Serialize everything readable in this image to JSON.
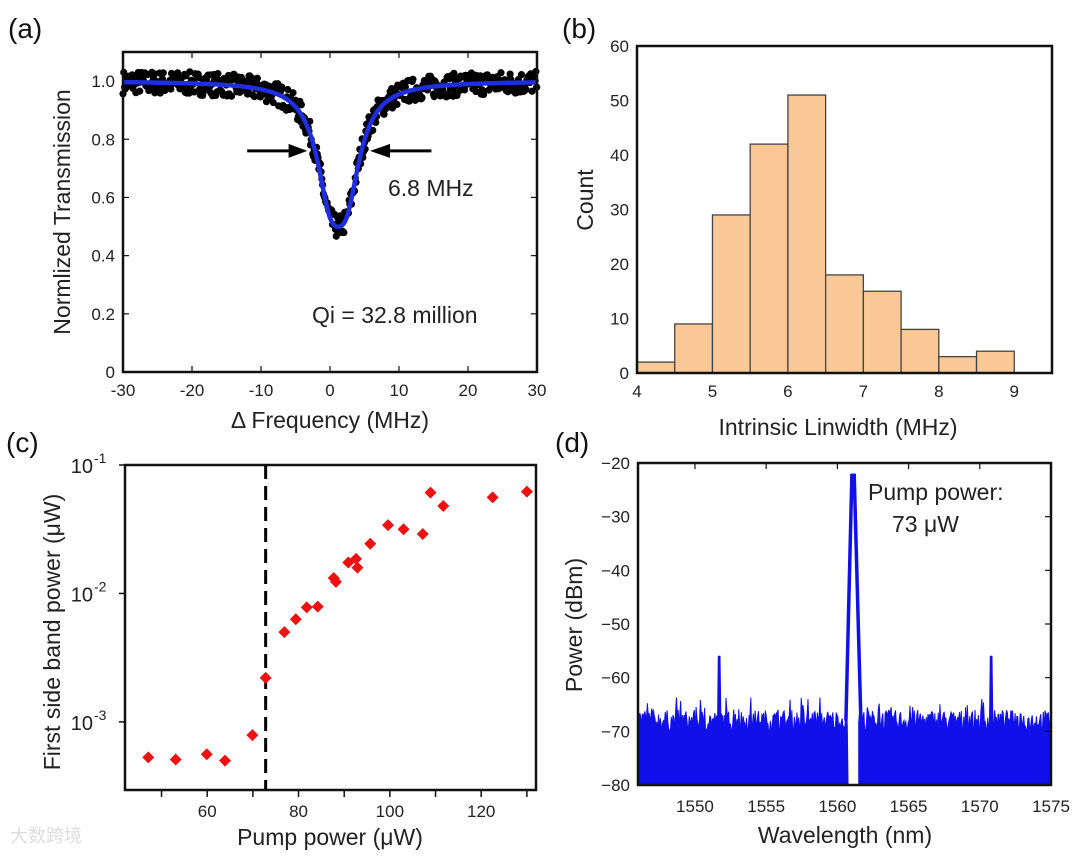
{
  "chart_data": [
    {
      "panel": "(a)",
      "type": "scatter",
      "xlabel": "Δ Frequency (MHz)",
      "ylabel": "Normlized Transmission",
      "xlim": [
        -30,
        30
      ],
      "ylim": [
        0,
        1.1
      ],
      "xticks": [
        "-30",
        "-20",
        "-10",
        "0",
        "10",
        "20",
        "30"
      ],
      "yticks": [
        "0",
        "0.2",
        "0.4",
        "0.6",
        "0.8",
        "1.0"
      ],
      "series": [
        {
          "name": "measured",
          "color": "#000000",
          "noise_amplitude": 0.04
        },
        {
          "name": "fit",
          "color": "#1f2ee0",
          "model": "doublet-lorentzian",
          "centers": [
            0,
            2.4
          ],
          "half_width": 2.4,
          "depth_each": 0.313
        }
      ],
      "annotations": {
        "linewidth": "6.8 MHz",
        "q": "Qi = 32.8 million"
      }
    },
    {
      "panel": "(b)",
      "type": "bar",
      "xlabel": "Intrinsic Linwidth (MHz)",
      "ylabel": "Count",
      "xlim": [
        4,
        9.5
      ],
      "ylim": [
        0,
        60
      ],
      "xticks": [
        "4",
        "5",
        "6",
        "7",
        "8",
        "9"
      ],
      "yticks": [
        "0",
        "10",
        "20",
        "30",
        "40",
        "50",
        "60"
      ],
      "bin_edges": [
        4,
        4.5,
        5,
        5.5,
        6,
        6.5,
        7,
        7.5,
        8,
        8.5,
        9
      ],
      "values": [
        2,
        9,
        29,
        42,
        51,
        18,
        15,
        8,
        3,
        4
      ],
      "color": "#f9c896"
    },
    {
      "panel": "(c)",
      "type": "scatter",
      "xlabel": "Pump power (μW)",
      "ylabel": "First side band power (μW)",
      "xlim": [
        42,
        132
      ],
      "ylim_log10": [
        -3.53,
        -1
      ],
      "xticks": [
        "60",
        "80",
        "100",
        "120"
      ],
      "yticks": [
        {
          "base": "10",
          "exp": "-1"
        },
        {
          "base": "10",
          "exp": "-2"
        },
        {
          "base": "10",
          "exp": "-3"
        }
      ],
      "threshold": 72.8,
      "color": "#ee1111",
      "x": [
        47.1,
        53.1,
        59.9,
        63.9,
        69.9,
        72.8,
        76.9,
        79.4,
        81.8,
        84.2,
        87.7,
        88.2,
        90.9,
        92.6,
        92.9,
        95.7,
        99.6,
        103.0,
        107.2,
        108.9,
        111.7,
        122.5,
        130.0
      ],
      "y": [
        0.00053,
        0.00051,
        0.00056,
        0.0005,
        0.00079,
        0.0022,
        0.005,
        0.0063,
        0.0078,
        0.0079,
        0.0132,
        0.0123,
        0.0174,
        0.0186,
        0.0159,
        0.0244,
        0.034,
        0.0316,
        0.029,
        0.061,
        0.048,
        0.056,
        0.062
      ]
    },
    {
      "panel": "(d)",
      "type": "line",
      "xlabel": "Wavelength (nm)",
      "ylabel": "Power (dBm)",
      "xlim": [
        1546,
        1575
      ],
      "ylim": [
        -80,
        -20
      ],
      "xticks": [
        "1550",
        "1555",
        "1560",
        "1565",
        "1570",
        "1575"
      ],
      "yticks": [
        "-20",
        "-30",
        "-40",
        "-50",
        "-60",
        "-70",
        "-80"
      ],
      "noise_floor_dbm": -68,
      "peaks": [
        {
          "x": 1561.1,
          "y": -23
        },
        {
          "x": 1551.7,
          "y": -56
        },
        {
          "x": 1570.8,
          "y": -56
        }
      ],
      "color": "#1010e8",
      "annotation": [
        "Pump power:",
        "73 μW"
      ]
    }
  ],
  "panel_labels": [
    "(a)",
    "(b)",
    "(c)",
    "(d)"
  ],
  "watermark": "大数跨境"
}
